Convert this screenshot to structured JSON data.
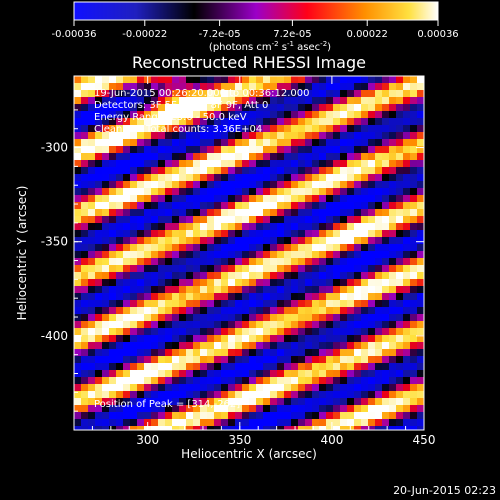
{
  "colorbar": {
    "tick_labels": [
      "-0.00036",
      "-0.00022",
      "-7.2e-05",
      "7.2e-05",
      "0.00022",
      "0.00036"
    ],
    "tick_values": [
      -0.00036,
      -0.00022,
      -7.2e-05,
      7.2e-05,
      0.00022,
      0.00036
    ],
    "range": [
      -0.00036,
      0.00036
    ],
    "unit_text": "(photons cm",
    "unit_sup1": "-2",
    "unit_mid": " s",
    "unit_sup2": "-1",
    "unit_end": " asec",
    "unit_sup3": "-2",
    "unit_close": ")",
    "colormap": "RHESSI blue-black-purple-red-orange-yellow-white",
    "colors": [
      "#0000ff",
      "#000000",
      "#7a00b0",
      "#e60010",
      "#ff8a00",
      "#ffe040",
      "#ffffff"
    ]
  },
  "title": "Reconstructed RHESSI Image",
  "info": {
    "time_range": "19-Jun-2015 00:26:20.000 to 00:36:12.000",
    "detectors": "Detectors: 3F 5F 6F 7F 8F 9F, Att 0",
    "energy_range": "Energy Range: 25.0 - 50.0 keV",
    "clean": "Clean",
    "total_counts": "Total counts: 3.36E+04",
    "peak": "Position of Peak = [314,-262]"
  },
  "x_axis": {
    "label": "Heliocentric X (arcsec)",
    "ticks": [
      "300",
      "350",
      "400",
      "450"
    ],
    "tick_values": [
      300,
      350,
      400,
      450
    ],
    "range": [
      260,
      450
    ]
  },
  "y_axis": {
    "label": "Heliocentric Y (arcsec)",
    "ticks": [
      "-300",
      "-350",
      "-400"
    ],
    "tick_values": [
      -300,
      -350,
      -400
    ],
    "range": [
      -450,
      -262
    ]
  },
  "footer": {
    "timestamp": "20-Jun-2015 02:23"
  },
  "chart_data": {
    "type": "heatmap",
    "title": "Reconstructed RHESSI Image",
    "xlabel": "Heliocentric X (arcsec)",
    "ylabel": "Heliocentric Y (arcsec)",
    "xlim": [
      260,
      450
    ],
    "ylim": [
      -450,
      -262
    ],
    "value_range": [
      -0.00036,
      0.00036
    ],
    "peak": [
      314,
      -262
    ],
    "grid": false,
    "legend": "colorbar top"
  }
}
